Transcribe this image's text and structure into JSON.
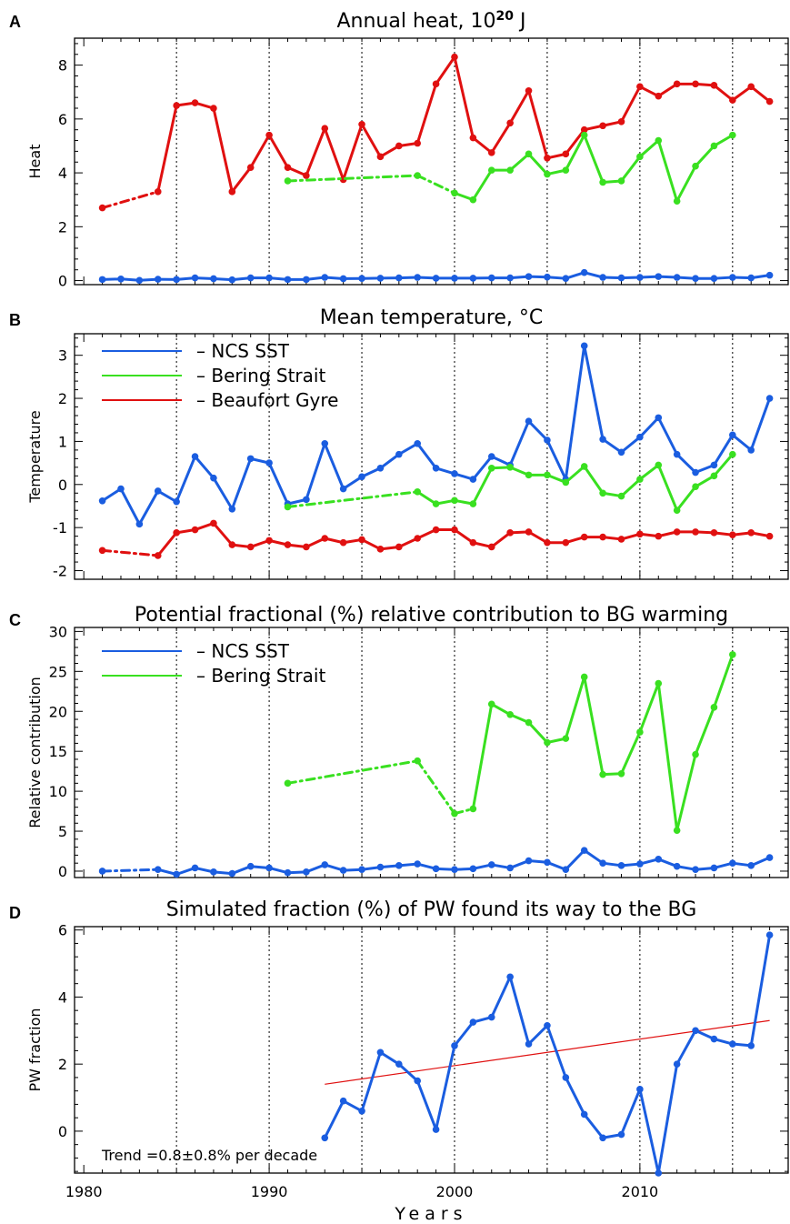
{
  "figure": {
    "x_axis_label": "Years",
    "x_ticks": [
      1980,
      1990,
      2000,
      2010
    ],
    "vlines": [
      1985,
      1990,
      1995,
      2000,
      2005,
      2010,
      2015
    ],
    "xlim": [
      1979.5,
      2018
    ]
  },
  "colors": {
    "ncs": "#1a5de0",
    "bering": "#39e020",
    "beaufort": "#e01010",
    "trend": "#e01010"
  },
  "chart_data": [
    {
      "letter": "A",
      "type": "line",
      "title": "Annual heat, 10",
      "title_sup": "20",
      "title_suffix": " J",
      "ylabel": "Heat",
      "ylim": [
        -0.15,
        9.0
      ],
      "yticks": [
        0,
        2,
        4,
        6,
        8
      ],
      "series": [
        {
          "color_key": "beaufort",
          "dash_until": 1984,
          "x": [
            1981,
            1984,
            1985,
            1986,
            1987,
            1988,
            1989,
            1990,
            1991,
            1992,
            1993,
            1994,
            1995,
            1996,
            1997,
            1998,
            1999,
            2000,
            2001,
            2002,
            2003,
            2004,
            2005,
            2006,
            2007,
            2008,
            2009,
            2010,
            2011,
            2012,
            2013,
            2014,
            2015,
            2016,
            2017
          ],
          "y": [
            2.7,
            3.3,
            6.5,
            6.6,
            6.4,
            3.3,
            4.2,
            5.4,
            4.2,
            3.9,
            5.65,
            3.75,
            5.8,
            4.6,
            5.0,
            5.1,
            7.3,
            8.3,
            5.3,
            4.75,
            5.85,
            7.05,
            4.55,
            4.7,
            5.6,
            5.75,
            5.9,
            7.2,
            6.85,
            7.3,
            7.3,
            7.25,
            6.7,
            7.2,
            6.65
          ]
        },
        {
          "color_key": "bering",
          "dash_until": 2000,
          "x": [
            1991,
            1998,
            2000,
            2001,
            2002,
            2003,
            2004,
            2005,
            2006,
            2007,
            2008,
            2009,
            2010,
            2011,
            2012,
            2013,
            2014,
            2015
          ],
          "y": [
            3.7,
            3.9,
            3.25,
            3.0,
            4.1,
            4.1,
            4.7,
            3.95,
            4.1,
            5.4,
            3.65,
            3.7,
            4.6,
            5.2,
            2.95,
            4.25,
            5.0,
            5.4
          ]
        },
        {
          "color_key": "ncs",
          "dash_until": null,
          "x": [
            1981,
            1982,
            1983,
            1984,
            1985,
            1986,
            1987,
            1988,
            1989,
            1990,
            1991,
            1992,
            1993,
            1994,
            1995,
            1996,
            1997,
            1998,
            1999,
            2000,
            2001,
            2002,
            2003,
            2004,
            2005,
            2006,
            2007,
            2008,
            2009,
            2010,
            2011,
            2012,
            2013,
            2014,
            2015,
            2016,
            2017
          ],
          "y": [
            0.04,
            0.06,
            0.01,
            0.05,
            0.04,
            0.1,
            0.07,
            0.03,
            0.1,
            0.1,
            0.04,
            0.04,
            0.12,
            0.07,
            0.08,
            0.09,
            0.1,
            0.12,
            0.09,
            0.09,
            0.09,
            0.1,
            0.1,
            0.15,
            0.13,
            0.08,
            0.3,
            0.12,
            0.1,
            0.12,
            0.15,
            0.12,
            0.08,
            0.08,
            0.12,
            0.1,
            0.2
          ]
        }
      ]
    },
    {
      "letter": "B",
      "type": "line",
      "title": "Mean temperature, °C",
      "ylabel": "Temperature",
      "ylim": [
        -2.2,
        3.5
      ],
      "yticks": [
        -2,
        -1,
        0,
        1,
        2,
        3
      ],
      "legend": [
        "NCS SST",
        "Bering Strait",
        "Beaufort Gyre"
      ],
      "legend_colors": [
        "ncs",
        "bering",
        "beaufort"
      ],
      "series": [
        {
          "name": "NCS SST",
          "color_key": "ncs",
          "dash_until": null,
          "x": [
            1981,
            1982,
            1983,
            1984,
            1985,
            1986,
            1987,
            1988,
            1989,
            1990,
            1991,
            1992,
            1993,
            1994,
            1995,
            1996,
            1997,
            1998,
            1999,
            2000,
            2001,
            2002,
            2003,
            2004,
            2005,
            2006,
            2007,
            2008,
            2009,
            2010,
            2011,
            2012,
            2013,
            2014,
            2015,
            2016,
            2017
          ],
          "y": [
            -0.38,
            -0.1,
            -0.92,
            -0.15,
            -0.4,
            0.65,
            0.15,
            -0.57,
            0.6,
            0.5,
            -0.45,
            -0.35,
            0.95,
            -0.1,
            0.18,
            0.38,
            0.7,
            0.95,
            0.38,
            0.25,
            0.12,
            0.65,
            0.45,
            1.47,
            1.03,
            0.12,
            3.22,
            1.05,
            0.75,
            1.1,
            1.55,
            0.7,
            0.28,
            0.45,
            1.15,
            0.8,
            2.0
          ]
        },
        {
          "name": "Bering Strait",
          "color_key": "bering",
          "dash_until": 1998,
          "x": [
            1991,
            1998,
            1999,
            2000,
            2001,
            2002,
            2003,
            2004,
            2005,
            2006,
            2007,
            2008,
            2009,
            2010,
            2011,
            2012,
            2013,
            2014,
            2015
          ],
          "y": [
            -0.52,
            -0.17,
            -0.45,
            -0.37,
            -0.45,
            0.38,
            0.4,
            0.22,
            0.22,
            0.05,
            0.42,
            -0.2,
            -0.27,
            0.12,
            0.45,
            -0.6,
            -0.05,
            0.2,
            0.7
          ]
        },
        {
          "name": "Beaufort Gyre",
          "color_key": "beaufort",
          "dash_until": 1984,
          "x": [
            1981,
            1984,
            1985,
            1986,
            1987,
            1988,
            1989,
            1990,
            1991,
            1992,
            1993,
            1994,
            1995,
            1996,
            1997,
            1998,
            1999,
            2000,
            2001,
            2002,
            2003,
            2004,
            2005,
            2006,
            2007,
            2008,
            2009,
            2010,
            2011,
            2012,
            2013,
            2014,
            2015,
            2016,
            2017
          ],
          "y": [
            -1.53,
            -1.65,
            -1.12,
            -1.05,
            -0.9,
            -1.4,
            -1.45,
            -1.3,
            -1.4,
            -1.45,
            -1.25,
            -1.35,
            -1.28,
            -1.5,
            -1.45,
            -1.25,
            -1.05,
            -1.05,
            -1.35,
            -1.45,
            -1.12,
            -1.1,
            -1.35,
            -1.35,
            -1.22,
            -1.22,
            -1.27,
            -1.15,
            -1.2,
            -1.1,
            -1.1,
            -1.12,
            -1.17,
            -1.12,
            -1.2
          ]
        }
      ]
    },
    {
      "letter": "C",
      "type": "line",
      "title": "Potential fractional (%) relative contribution to BG warming",
      "ylabel": "Relative contribution",
      "ylim": [
        -0.8,
        30.5
      ],
      "yticks": [
        0,
        5,
        10,
        15,
        20,
        25,
        30
      ],
      "legend": [
        "NCS SST",
        "Bering Strait"
      ],
      "legend_colors": [
        "ncs",
        "bering"
      ],
      "series": [
        {
          "name": "NCS SST",
          "color_key": "ncs",
          "dash_until": 1984,
          "x": [
            1981,
            1984,
            1985,
            1986,
            1987,
            1988,
            1989,
            1990,
            1991,
            1992,
            1993,
            1994,
            1995,
            1996,
            1997,
            1998,
            1999,
            2000,
            2001,
            2002,
            2003,
            2004,
            2005,
            2006,
            2007,
            2008,
            2009,
            2010,
            2011,
            2012,
            2013,
            2014,
            2015,
            2016,
            2017
          ],
          "y": [
            0.0,
            0.2,
            -0.4,
            0.4,
            -0.1,
            -0.3,
            0.6,
            0.4,
            -0.2,
            -0.1,
            0.8,
            0.1,
            0.2,
            0.5,
            0.7,
            0.9,
            0.3,
            0.2,
            0.3,
            0.8,
            0.4,
            1.3,
            1.1,
            0.2,
            2.6,
            1.0,
            0.7,
            0.9,
            1.5,
            0.6,
            0.2,
            0.4,
            1.0,
            0.7,
            1.7
          ]
        },
        {
          "name": "Bering Strait",
          "color_key": "bering",
          "dash_until": 2001,
          "x": [
            1991,
            1998,
            2000,
            2001,
            2002,
            2003,
            2004,
            2005,
            2006,
            2007,
            2008,
            2009,
            2010,
            2011,
            2012,
            2013,
            2014,
            2015
          ],
          "y": [
            11.0,
            13.8,
            7.2,
            7.8,
            20.9,
            19.6,
            18.6,
            16.1,
            16.6,
            24.3,
            12.1,
            12.2,
            17.4,
            23.5,
            5.1,
            14.6,
            20.5,
            27.1
          ]
        }
      ]
    },
    {
      "letter": "D",
      "type": "line",
      "title": "Simulated fraction (%) of PW found its way to the BG",
      "ylabel": "PW fraction",
      "ylim": [
        -1.25,
        6.1
      ],
      "yticks": [
        0,
        2,
        4,
        6
      ],
      "annotation": "Trend =0.8±0.8% per decade",
      "trend": {
        "x": [
          1993,
          2017
        ],
        "y": [
          1.4,
          3.3
        ]
      },
      "series": [
        {
          "color_key": "ncs",
          "dash_until": null,
          "x": [
            1993,
            1994,
            1995,
            1996,
            1997,
            1998,
            1999,
            2000,
            2001,
            2002,
            2003,
            2004,
            2005,
            2006,
            2007,
            2008,
            2009,
            2010,
            2011,
            2012,
            2013,
            2014,
            2015,
            2016,
            2017
          ],
          "y": [
            -0.2,
            0.9,
            0.6,
            2.35,
            2.0,
            1.5,
            0.05,
            2.55,
            3.25,
            3.4,
            4.6,
            2.6,
            3.15,
            1.6,
            0.5,
            -0.2,
            -0.1,
            1.25,
            -1.25,
            2.0,
            3.0,
            2.75,
            2.6,
            2.55,
            5.85
          ]
        }
      ]
    }
  ]
}
